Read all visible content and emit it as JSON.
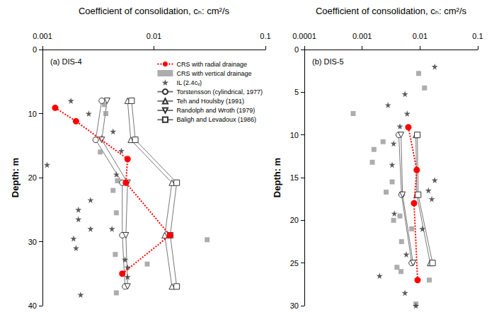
{
  "chart_data": [
    {
      "type": "scatter",
      "title": "(a) DIS-4",
      "x_label": "Coefficient of consolidation, cₕ: cm²/s",
      "y_label": "Depth: m",
      "log": "x",
      "grid": false,
      "legend": "upper right",
      "xlim": [
        0.001,
        0.1
      ],
      "xticks": [
        0.001,
        0.01,
        0.1
      ],
      "ylim": [
        0,
        40
      ],
      "yticks": [
        0,
        10,
        20,
        30,
        40
      ],
      "series": [
        {
          "name": "CRS with radial drainage",
          "type": "line",
          "color": "#ff0000",
          "marker": "circle",
          "line_style": "dotted",
          "x": [
            0.0013,
            0.002,
            0.0058,
            0.0056,
            0.0139,
            0.0052
          ],
          "y": [
            9.1,
            11.2,
            17.1,
            20.8,
            29,
            35
          ]
        },
        {
          "name": "CRS with vertical drainage",
          "type": "scatter",
          "color": "#999999",
          "marker": "square",
          "x": [
            0.0036,
            0.0037,
            0.0033,
            0.0047,
            0.0043,
            0.0046,
            0.03,
            0.0045,
            0.0087,
            0.0046
          ],
          "y": [
            8.6,
            10,
            16,
            20.5,
            22,
            25.5,
            29.7,
            32,
            33.5,
            38
          ]
        },
        {
          "name": "IL (2.4cᵥ)",
          "type": "scatter",
          "color": "#333333",
          "marker": "star",
          "x": [
            0.0018,
            0.0026,
            0.0034,
            0.0043,
            0.0051,
            0.0011,
            0.0046,
            0.0027,
            0.0021,
            0.0021,
            0.0027,
            0.0042,
            0.0019,
            0.002,
            0.0055,
            0.0058,
            0.0058,
            0.0022
          ],
          "y": [
            8,
            10,
            13.8,
            12.8,
            15.8,
            18,
            19.5,
            23.5,
            25,
            26.5,
            28,
            28,
            29.5,
            31,
            32.8,
            34,
            35.5,
            38.3
          ]
        },
        {
          "name": "Torstensson (cylindrical, 1977)",
          "type": "line",
          "color": "#777777",
          "marker": "open_circle",
          "line_style": "solid",
          "x": [
            0.0034,
            0.003,
            0.0052,
            0.0052,
            0.0055
          ],
          "y": [
            8,
            14.1,
            20.8,
            29,
            37
          ]
        },
        {
          "name": "Teh and Houlsby (1991)",
          "type": "line",
          "color": "#777777",
          "marker": "open_triangle",
          "line_style": "solid",
          "x": [
            0.0058,
            0.0062,
            0.0145,
            0.0125,
            0.0145
          ],
          "y": [
            8,
            14.1,
            20.8,
            29,
            37
          ]
        },
        {
          "name": "Randolph and Wroth (1979)",
          "type": "line",
          "color": "#777777",
          "marker": "open_triangle_down",
          "line_style": "solid",
          "x": [
            0.0038,
            0.0034,
            0.0058,
            0.0056,
            0.0058
          ],
          "y": [
            8,
            14.1,
            20.8,
            29,
            37
          ]
        },
        {
          "name": "Baligh and Levadoux (1986)",
          "type": "line",
          "color": "#777777",
          "marker": "open_square",
          "line_style": "solid",
          "x": [
            0.0063,
            0.0068,
            0.016,
            0.014,
            0.016
          ],
          "y": [
            8,
            14.1,
            20.8,
            29,
            37
          ]
        }
      ]
    },
    {
      "type": "scatter",
      "title": "(b) DIS-5",
      "x_label": "Coefficient of consolidation, cₕ: cm²/s",
      "y_label": "Depth: m",
      "log": "x",
      "grid": false,
      "xlim": [
        0.0001,
        0.1
      ],
      "xticks": [
        0.0001,
        0.001,
        0.01,
        0.1
      ],
      "ylim": [
        0,
        30
      ],
      "yticks": [
        0,
        5,
        10,
        15,
        20,
        25,
        30
      ],
      "series": [
        {
          "name": "CRS with radial drainage",
          "type": "line",
          "color": "#ff0000",
          "marker": "circle",
          "line_style": "dotted",
          "x": [
            0.0063,
            0.0088,
            0.0079,
            0.0091
          ],
          "y": [
            9.1,
            14.1,
            18,
            27
          ]
        },
        {
          "name": "CRS with vertical drainage",
          "type": "scatter",
          "color": "#999999",
          "marker": "square",
          "x": [
            0.0095,
            0.012,
            0.0007,
            0.0023,
            0.0016,
            0.0015,
            0.0033,
            0.0026,
            0.0045,
            0.0035,
            0.0072,
            0.0048,
            0.004,
            0.0047,
            0.0145,
            0.0085
          ],
          "y": [
            2.8,
            4.5,
            7.5,
            10.8,
            11.7,
            13.2,
            15.5,
            16.7,
            19.5,
            20,
            21,
            22.5,
            25.5,
            26,
            27,
            29.8
          ]
        },
        {
          "name": "IL (2.4cᵥ)",
          "type": "scatter",
          "color": "#333333",
          "marker": "star",
          "x": [
            0.018,
            0.0055,
            0.0028,
            0.006,
            0.0045,
            0.0035,
            0.0033,
            0.018,
            0.014,
            0.016,
            0.0036,
            0.011,
            0.0058,
            0.002,
            0.0055,
            0.0085
          ],
          "y": [
            2,
            5.2,
            6.5,
            7.5,
            9,
            11,
            13.5,
            15.3,
            16.5,
            17.5,
            19.2,
            21,
            24,
            26.5,
            28.5,
            30
          ]
        },
        {
          "name": "Torstensson (cylindrical, 1977)",
          "type": "line",
          "color": "#777777",
          "marker": "open_circle",
          "line_style": "solid",
          "x": [
            0.0043,
            0.0048,
            0.0072
          ],
          "y": [
            10,
            17,
            25
          ]
        },
        {
          "name": "Teh and Houlsby (1991)",
          "type": "line",
          "color": "#777777",
          "marker": "open_triangle",
          "line_style": "solid",
          "x": [
            0.0085,
            0.0088,
            0.015
          ],
          "y": [
            10,
            17,
            25
          ]
        },
        {
          "name": "Randolph and Wroth (1979)",
          "type": "line",
          "color": "#777777",
          "marker": "open_triangle_down",
          "line_style": "solid",
          "x": [
            0.0047,
            0.005,
            0.0076
          ],
          "y": [
            10,
            17,
            25
          ]
        },
        {
          "name": "Baligh and Levadoux (1986)",
          "type": "line",
          "color": "#777777",
          "marker": "open_square",
          "line_style": "solid",
          "x": [
            0.009,
            0.0093,
            0.0165
          ],
          "y": [
            10,
            17,
            25
          ]
        }
      ]
    }
  ]
}
